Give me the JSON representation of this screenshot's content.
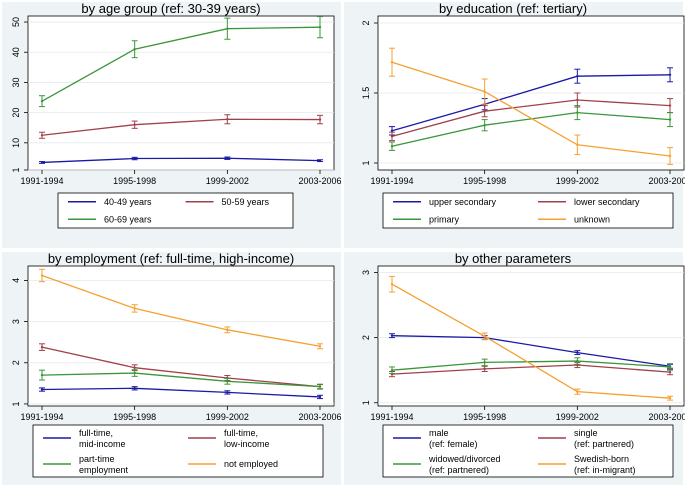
{
  "chart_data": [
    {
      "type": "line",
      "title": "by age group (ref: 30-39 years)",
      "categories": [
        "1991-1994",
        "1995-1998",
        "1999-2002",
        "2003-2006"
      ],
      "yticks": [
        1,
        10,
        20,
        30,
        40,
        50
      ],
      "ylim": [
        1,
        52
      ],
      "series": [
        {
          "name": "40-49 years",
          "color": "#1a1aa6",
          "values": [
            3.5,
            4.8,
            4.9,
            4.1
          ],
          "ci": [
            0.3,
            0.4,
            0.4,
            0.3
          ]
        },
        {
          "name": "50-59 years",
          "color": "#a0404a",
          "values": [
            12.5,
            16.0,
            17.8,
            17.7
          ],
          "ci": [
            1.0,
            1.2,
            1.5,
            1.4
          ]
        },
        {
          "name": "60-69 years",
          "color": "#3a963a",
          "values": [
            23.8,
            41.0,
            47.8,
            48.3
          ],
          "ci": [
            1.8,
            2.8,
            3.5,
            3.5
          ]
        }
      ]
    },
    {
      "type": "line",
      "title": "by education (ref: tertiary)",
      "categories": [
        "1991-1994",
        "1995-1998",
        "1999-2002",
        "2003-2006"
      ],
      "yticks": [
        1,
        1.5,
        2
      ],
      "ylim": [
        0.95,
        2.05
      ],
      "series": [
        {
          "name": "upper secondary",
          "color": "#1a1aa6",
          "values": [
            1.23,
            1.42,
            1.62,
            1.63
          ],
          "ci": [
            0.03,
            0.04,
            0.05,
            0.05
          ]
        },
        {
          "name": "lower secondary",
          "color": "#a0404a",
          "values": [
            1.19,
            1.37,
            1.45,
            1.41
          ],
          "ci": [
            0.03,
            0.04,
            0.05,
            0.05
          ]
        },
        {
          "name": "primary",
          "color": "#3a963a",
          "values": [
            1.12,
            1.27,
            1.36,
            1.31
          ],
          "ci": [
            0.03,
            0.04,
            0.05,
            0.05
          ]
        },
        {
          "name": "unknown",
          "color": "#f5a030",
          "values": [
            1.72,
            1.51,
            1.13,
            1.05
          ],
          "ci": [
            0.1,
            0.09,
            0.07,
            0.06
          ]
        }
      ]
    },
    {
      "type": "line",
      "title": "by employment (ref: full-time, high-income)",
      "categories": [
        "1991-1994",
        "1995-1998",
        "1999-2002",
        "2003-2006"
      ],
      "yticks": [
        1,
        2,
        3,
        4
      ],
      "ylim": [
        0.95,
        4.35
      ],
      "series": [
        {
          "name": "full-time, mid-income",
          "color": "#1a1aa6",
          "values": [
            1.35,
            1.38,
            1.28,
            1.17
          ],
          "ci": [
            0.04,
            0.04,
            0.04,
            0.04
          ]
        },
        {
          "name": "full-time, low-income",
          "color": "#a0404a",
          "values": [
            2.38,
            1.88,
            1.63,
            1.42
          ],
          "ci": [
            0.08,
            0.07,
            0.06,
            0.05
          ]
        },
        {
          "name": "part-time employment",
          "color": "#3a963a",
          "values": [
            1.7,
            1.75,
            1.55,
            1.42
          ],
          "ci": [
            0.12,
            0.08,
            0.07,
            0.06
          ]
        },
        {
          "name": "not employed",
          "color": "#f5a030",
          "values": [
            4.12,
            3.32,
            2.8,
            2.4
          ],
          "ci": [
            0.15,
            0.09,
            0.07,
            0.06
          ]
        }
      ]
    },
    {
      "type": "line",
      "title": "by other parameters",
      "categories": [
        "1991-1994",
        "1995-1998",
        "1999-2002",
        "2003-2006"
      ],
      "yticks": [
        1,
        2,
        3
      ],
      "ylim": [
        0.95,
        3.1
      ],
      "series": [
        {
          "name": "male",
          "name2": "(ref: female)",
          "color": "#1a1aa6",
          "values": [
            2.03,
            2.0,
            1.77,
            1.56
          ],
          "ci": [
            0.03,
            0.03,
            0.03,
            0.03
          ]
        },
        {
          "name": "single",
          "name2": "(ref: partnered)",
          "color": "#a0404a",
          "values": [
            1.44,
            1.52,
            1.58,
            1.47
          ],
          "ci": [
            0.04,
            0.04,
            0.04,
            0.04
          ]
        },
        {
          "name": "widowed/divorced",
          "name2": "(ref: partnered)",
          "color": "#3a963a",
          "values": [
            1.5,
            1.62,
            1.64,
            1.55
          ],
          "ci": [
            0.05,
            0.05,
            0.05,
            0.05
          ]
        },
        {
          "name": "Swedish-born",
          "name2": "(ref: in-migrant)",
          "color": "#f5a030",
          "values": [
            2.82,
            2.02,
            1.17,
            1.07
          ],
          "ci": [
            0.12,
            0.05,
            0.04,
            0.03
          ]
        }
      ]
    }
  ]
}
